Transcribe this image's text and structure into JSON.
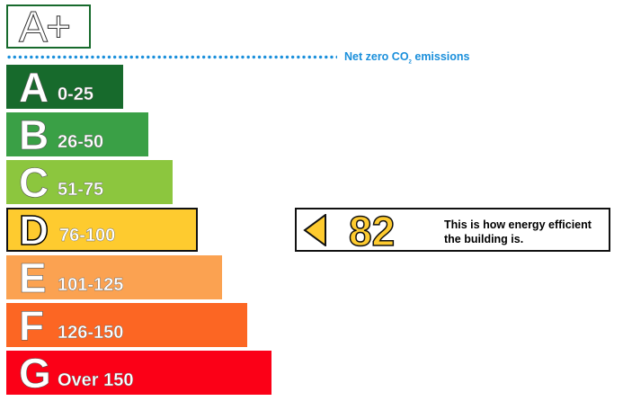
{
  "chart_data": {
    "type": "bar",
    "top_band": {
      "label": "A+",
      "color": "#176a2c"
    },
    "net_zero_label": {
      "prefix": "Net zero CO",
      "subscript": "2",
      "suffix": " emissions",
      "color": "#1a8fdb"
    },
    "bands": [
      {
        "letter": "A",
        "range": "0-25",
        "color": "#176a2c"
      },
      {
        "letter": "B",
        "range": "26-50",
        "color": "#3aa046"
      },
      {
        "letter": "C",
        "range": "51-75",
        "color": "#8cc63e"
      },
      {
        "letter": "D",
        "range": "76-100",
        "color": "#fecb2f"
      },
      {
        "letter": "E",
        "range": "101-125",
        "color": "#fba251"
      },
      {
        "letter": "F",
        "range": "126-150",
        "color": "#fc6623"
      },
      {
        "letter": "G",
        "range": "Over 150",
        "color": "#fb0017"
      }
    ],
    "current_band": "D",
    "score": {
      "value": "82",
      "description": "This is how energy efficient the building is.",
      "color": "#fecb2f"
    }
  }
}
